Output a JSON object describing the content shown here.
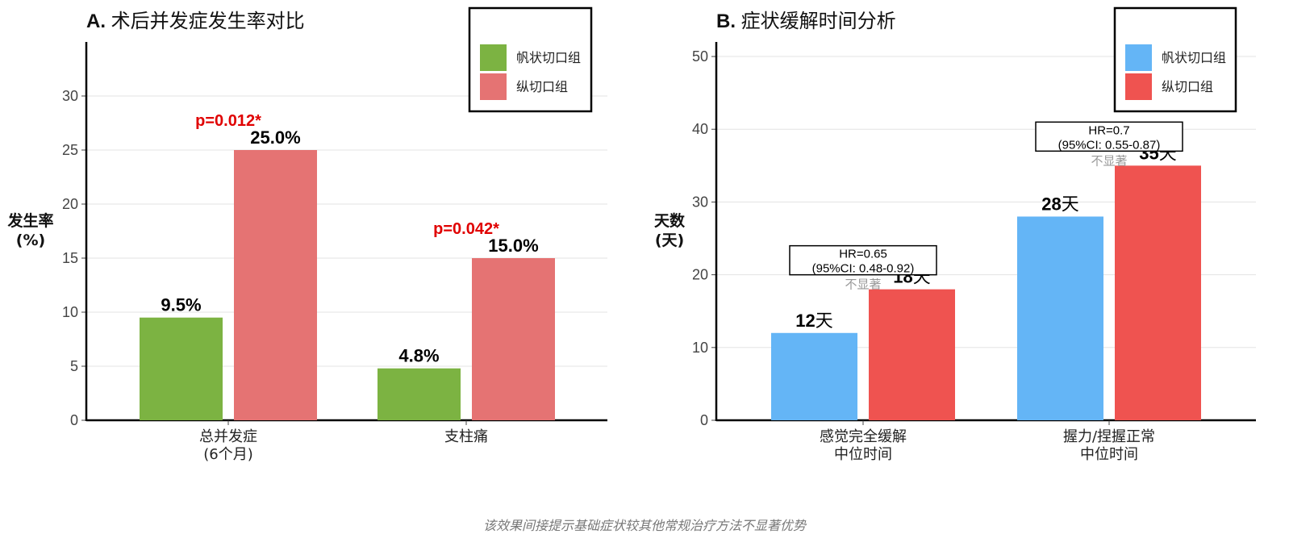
{
  "footnote": "该效果间接提示基础症状较其他常规治疗方法不显著优势",
  "chart_data": [
    {
      "type": "bar",
      "panel_letter": "A.",
      "title": "术后并发症发生率对比",
      "ylabel": "发生率\n(%)",
      "xlabel": "",
      "ylim": [
        0,
        35
      ],
      "yticks": [
        0,
        5,
        10,
        15,
        20,
        25,
        30
      ],
      "grid": true,
      "legend_position": "top-right",
      "categories": [
        "总并发症\n(6个月)",
        "支柱痛"
      ],
      "series": [
        {
          "name": "帆状切口组",
          "color": "#7cb342",
          "values": [
            9.5,
            4.8
          ],
          "labels": [
            "9.5%",
            "4.8%"
          ]
        },
        {
          "name": "纵切口组",
          "color": "#e57373",
          "values": [
            25.0,
            15.0
          ],
          "labels": [
            "25.0%",
            "15.0%"
          ]
        }
      ],
      "annotations": [
        {
          "category_index": 0,
          "text": "p=0.012*",
          "color": "#e00000"
        },
        {
          "category_index": 1,
          "text": "p=0.042*",
          "color": "#e00000"
        }
      ]
    },
    {
      "type": "bar",
      "panel_letter": "B.",
      "title": "症状缓解时间分析",
      "ylabel": "天数\n(天)",
      "xlabel": "",
      "ylim": [
        0,
        52
      ],
      "yticks": [
        0,
        10,
        20,
        30,
        40,
        50
      ],
      "grid": true,
      "legend_position": "top-right",
      "categories": [
        "感觉完全缓解\n中位时间",
        "握力/捏握正常\n中位时间"
      ],
      "series": [
        {
          "name": "帆状切口组",
          "color": "#64b5f6",
          "values": [
            12,
            28
          ],
          "labels": [
            "12天",
            "28天"
          ]
        },
        {
          "name": "纵切口组",
          "color": "#ef5350",
          "values": [
            18,
            35
          ],
          "labels": [
            "18天",
            "35天"
          ]
        }
      ],
      "hr_boxes": [
        {
          "category_index": 0,
          "line1": "HR=0.65",
          "line2": "(95%CI: 0.48-0.92)",
          "note": "不显著"
        },
        {
          "category_index": 1,
          "line1": "HR=0.7",
          "line2": "(95%CI: 0.55-0.87)",
          "note": "不显著"
        }
      ]
    }
  ]
}
